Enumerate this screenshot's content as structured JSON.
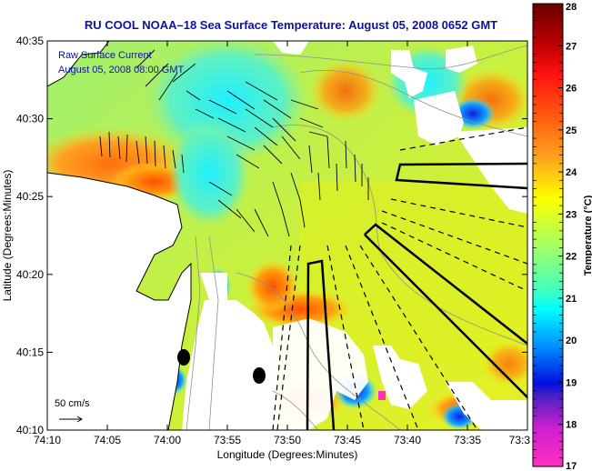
{
  "title": "RU COOL  NOAA–18  Sea Surface Temperature:  August 05, 2008 0652 GMT",
  "annotation": {
    "line1": "Raw Surface Current",
    "line2": "August 05, 2008 08:00 GMT"
  },
  "scale_label": "50 cm/s",
  "axes": {
    "xlabel": "Longitude (Degrees:Minutes)",
    "ylabel": "Latitude (Degrees:Minutes)",
    "xticks": [
      "74:10",
      "74:05",
      "74:00",
      "73:55",
      "73:50",
      "73:45",
      "73:40",
      "73:35",
      "73:3"
    ],
    "yticks": [
      "40:35",
      "40:30",
      "40:25",
      "40:20",
      "40:15",
      "40:10"
    ]
  },
  "colorbar": {
    "label": "Temperature (°C)",
    "min": 17,
    "max": 28,
    "ticks": [
      "28",
      "27",
      "26",
      "25",
      "24",
      "23",
      "22",
      "21",
      "20",
      "19",
      "18",
      "17"
    ]
  },
  "colors": {
    "title": "#1010a0",
    "annotation": "#1010a0"
  }
}
